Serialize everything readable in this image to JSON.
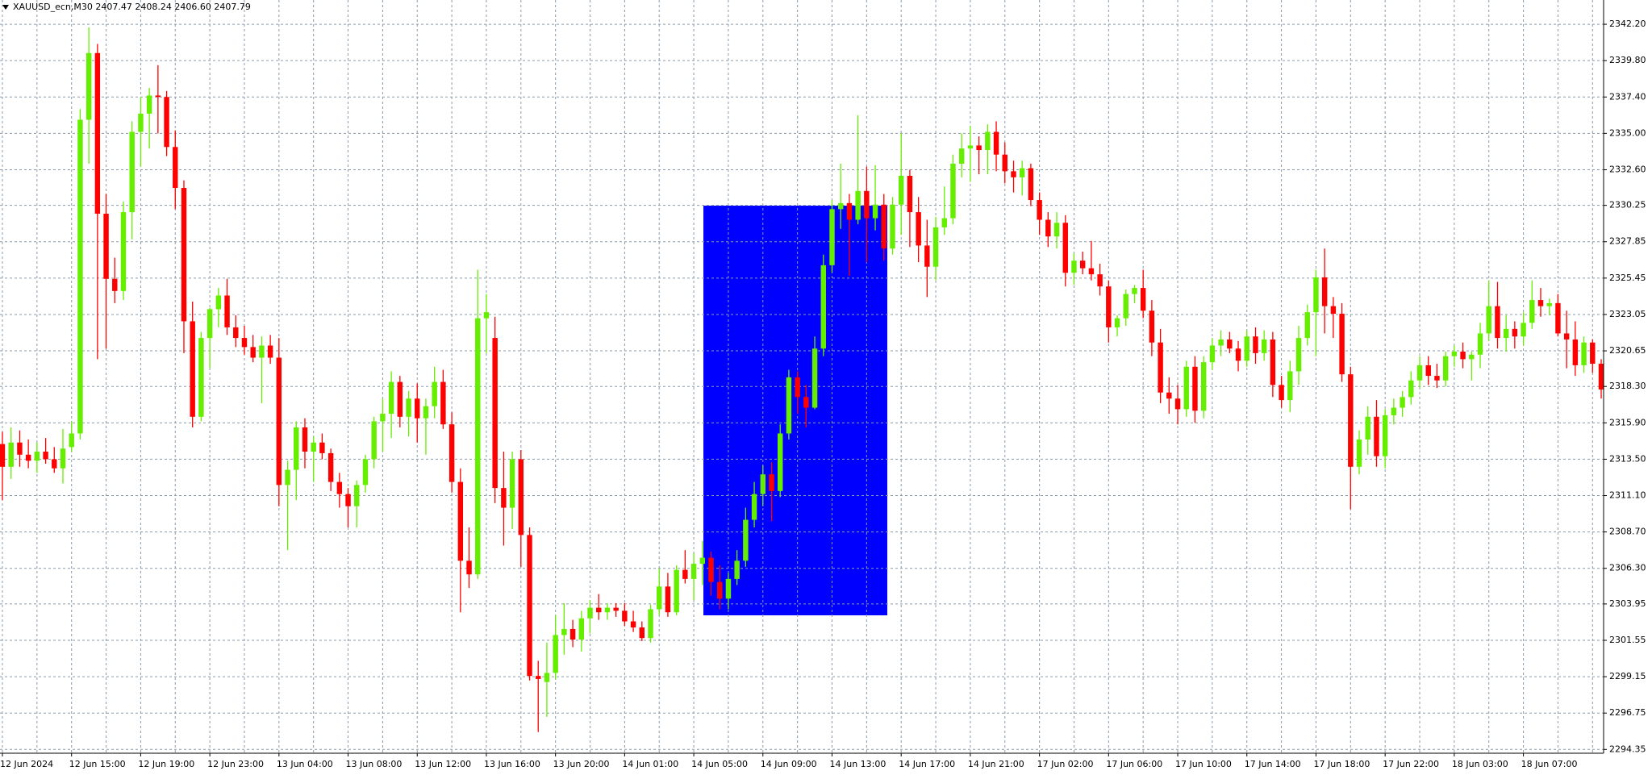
{
  "chart_data": {
    "type": "candlestick",
    "title": "XAUUSD_ecn,M30  2407.47 2408.24 2406.60 2407.79",
    "up_color": "#66ee00",
    "down_color": "#ff0000",
    "grid": true,
    "grid_color": "#8a9aaa",
    "ylim": [
      2294.1,
      2343.8
    ],
    "yticks": [
      {
        "value": 2342.2,
        "label": "2342.20"
      },
      {
        "value": 2339.8,
        "label": "2339.80"
      },
      {
        "value": 2337.4,
        "label": "2337.40"
      },
      {
        "value": 2335.0,
        "label": "2335.00"
      },
      {
        "value": 2332.6,
        "label": "2332.60"
      },
      {
        "value": 2330.25,
        "label": "2330.25"
      },
      {
        "value": 2327.85,
        "label": "2327.85"
      },
      {
        "value": 2325.45,
        "label": "2325.45"
      },
      {
        "value": 2323.05,
        "label": "2323.05"
      },
      {
        "value": 2320.65,
        "label": "2320.65"
      },
      {
        "value": 2318.3,
        "label": "2318.30"
      },
      {
        "value": 2315.9,
        "label": "2315.90"
      },
      {
        "value": 2313.5,
        "label": "2313.50"
      },
      {
        "value": 2311.1,
        "label": "2311.10"
      },
      {
        "value": 2308.7,
        "label": "2308.70"
      },
      {
        "value": 2306.3,
        "label": "2306.30"
      },
      {
        "value": 2303.95,
        "label": "2303.95"
      },
      {
        "value": 2301.55,
        "label": "2301.55"
      },
      {
        "value": 2299.15,
        "label": "2299.15"
      },
      {
        "value": 2296.75,
        "label": "2296.75"
      },
      {
        "value": 2294.35,
        "label": "2294.35"
      }
    ],
    "categories": [
      "12 Jun 2024",
      null,
      null,
      null,
      null,
      null,
      null,
      null,
      "12 Jun 15:00",
      null,
      null,
      null,
      null,
      null,
      null,
      null,
      "12 Jun 19:00",
      null,
      null,
      null,
      null,
      null,
      null,
      null,
      "12 Jun 23:00",
      null,
      null,
      null,
      null,
      null,
      null,
      null,
      "13 Jun 04:00",
      null,
      null,
      null,
      null,
      null,
      null,
      null,
      "13 Jun 08:00",
      null,
      null,
      null,
      null,
      null,
      null,
      null,
      "13 Jun 12:00",
      null,
      null,
      null,
      null,
      null,
      null,
      null,
      "13 Jun 16:00",
      null,
      null,
      null,
      null,
      null,
      null,
      null,
      "13 Jun 20:00",
      null,
      null,
      null,
      null,
      null,
      null,
      null,
      "14 Jun 01:00",
      null,
      null,
      null,
      null,
      null,
      null,
      null,
      "14 Jun 05:00",
      null,
      null,
      null,
      null,
      null,
      null,
      null,
      "14 Jun 09:00",
      null,
      null,
      null,
      null,
      null,
      null,
      null,
      "14 Jun 13:00",
      null,
      null,
      null,
      null,
      null,
      null,
      null,
      "14 Jun 17:00",
      null,
      null,
      null,
      null,
      null,
      null,
      null,
      "14 Jun 21:00",
      null,
      null,
      null,
      null,
      null,
      null,
      null,
      "17 Jun 02:00",
      null,
      null,
      null,
      null,
      null,
      null,
      null,
      "17 Jun 06:00",
      null,
      null,
      null,
      null,
      null,
      null,
      null,
      "17 Jun 10:00",
      null,
      null,
      null,
      null,
      null,
      null,
      null,
      "17 Jun 14:00",
      null,
      null,
      null,
      null,
      null,
      null,
      null,
      "17 Jun 18:00",
      null,
      null,
      null,
      null,
      null,
      null,
      null,
      "17 Jun 22:00",
      null,
      null,
      null,
      null,
      null,
      null,
      null,
      "18 Jun 03:00",
      null,
      null,
      null,
      null,
      null,
      null,
      null,
      "18 Jun 07:00",
      null,
      null,
      null,
      null,
      null,
      null,
      null,
      null,
      null
    ],
    "ohlc": [
      [
        2314.5,
        2315.3,
        2310.8,
        2313.0
      ],
      [
        2313.0,
        2315.6,
        2312.2,
        2314.6
      ],
      [
        2314.6,
        2315.4,
        2313.0,
        2313.8
      ],
      [
        2313.8,
        2314.8,
        2312.9,
        2313.4
      ],
      [
        2313.4,
        2314.6,
        2312.6,
        2314.0
      ],
      [
        2314.0,
        2314.9,
        2313.2,
        2313.5
      ],
      [
        2313.5,
        2314.3,
        2312.6,
        2312.9
      ],
      [
        2312.9,
        2315.5,
        2311.9,
        2314.2
      ],
      [
        2314.3,
        2316.0,
        2314.0,
        2315.2
      ],
      [
        2315.2,
        2336.6,
        2314.8,
        2335.9
      ],
      [
        2335.9,
        2342.0,
        2333.0,
        2340.3
      ],
      [
        2340.3,
        2340.9,
        2320.1,
        2329.7
      ],
      [
        2329.7,
        2331.0,
        2320.8,
        2325.4
      ],
      [
        2325.4,
        2326.8,
        2323.8,
        2324.6
      ],
      [
        2324.6,
        2330.5,
        2324.0,
        2329.8
      ],
      [
        2329.8,
        2335.8,
        2328.0,
        2335.1
      ],
      [
        2335.1,
        2337.4,
        2332.8,
        2336.3
      ],
      [
        2336.3,
        2338.0,
        2334.0,
        2337.5
      ],
      [
        2337.5,
        2339.5,
        2335.0,
        2337.4
      ],
      [
        2337.4,
        2337.8,
        2333.5,
        2334.1
      ],
      [
        2334.1,
        2335.2,
        2330.0,
        2331.4
      ],
      [
        2331.4,
        2331.9,
        2320.5,
        2322.6
      ],
      [
        2322.6,
        2323.9,
        2315.6,
        2316.3
      ],
      [
        2316.3,
        2321.9,
        2316.0,
        2321.5
      ],
      [
        2321.5,
        2323.5,
        2319.5,
        2323.4
      ],
      [
        2323.4,
        2324.8,
        2322.2,
        2324.3
      ],
      [
        2324.3,
        2325.4,
        2321.7,
        2322.2
      ],
      [
        2322.2,
        2323.0,
        2320.9,
        2321.5
      ],
      [
        2321.5,
        2322.3,
        2320.4,
        2320.9
      ],
      [
        2320.9,
        2321.7,
        2319.9,
        2320.2
      ],
      [
        2320.2,
        2321.6,
        2317.2,
        2321.0
      ],
      [
        2321.0,
        2321.7,
        2319.8,
        2320.2
      ],
      [
        2320.2,
        2321.5,
        2310.4,
        2311.8
      ],
      [
        2311.8,
        2313.4,
        2307.5,
        2312.8
      ],
      [
        2312.8,
        2316.0,
        2310.8,
        2315.6
      ],
      [
        2315.6,
        2316.2,
        2312.9,
        2314.0
      ],
      [
        2314.0,
        2315.0,
        2312.0,
        2314.6
      ],
      [
        2314.6,
        2315.2,
        2313.5,
        2313.9
      ],
      [
        2313.9,
        2314.2,
        2311.4,
        2312.0
      ],
      [
        2312.0,
        2312.6,
        2310.3,
        2311.2
      ],
      [
        2311.2,
        2311.6,
        2309.0,
        2310.4
      ],
      [
        2310.4,
        2312.1,
        2309.0,
        2311.8
      ],
      [
        2311.8,
        2313.8,
        2311.3,
        2313.5
      ],
      [
        2313.5,
        2316.3,
        2312.9,
        2316.0
      ],
      [
        2316.0,
        2317.5,
        2314.0,
        2316.5
      ],
      [
        2316.5,
        2319.3,
        2314.9,
        2318.6
      ],
      [
        2318.6,
        2319.0,
        2315.6,
        2316.3
      ],
      [
        2316.3,
        2318.0,
        2315.0,
        2317.5
      ],
      [
        2317.5,
        2318.5,
        2314.6,
        2316.2
      ],
      [
        2316.2,
        2317.5,
        2313.8,
        2317.0
      ],
      [
        2317.0,
        2319.6,
        2316.2,
        2318.6
      ],
      [
        2318.6,
        2319.4,
        2315.5,
        2315.8
      ],
      [
        2315.8,
        2316.6,
        2311.3,
        2312.0
      ],
      [
        2312.0,
        2312.9,
        2303.4,
        2306.8
      ],
      [
        2306.8,
        2309.0,
        2305.0,
        2305.9
      ],
      [
        2305.9,
        2326.0,
        2305.6,
        2322.8
      ],
      [
        2322.8,
        2324.4,
        2320.5,
        2323.2
      ],
      [
        2321.5,
        2322.9,
        2310.6,
        2311.6
      ],
      [
        2311.6,
        2314.0,
        2307.8,
        2310.3
      ],
      [
        2310.3,
        2314.0,
        2308.9,
        2313.5
      ],
      [
        2313.5,
        2314.1,
        2306.4,
        2308.5
      ],
      [
        2308.5,
        2309.0,
        2298.9,
        2299.2
      ],
      [
        2299.2,
        2300.2,
        2295.5,
        2299.0
      ],
      [
        2298.8,
        2301.4,
        2296.5,
        2299.4
      ],
      [
        2299.4,
        2303.2,
        2299.0,
        2301.9
      ],
      [
        2301.9,
        2304.0,
        2300.6,
        2302.3
      ],
      [
        2302.3,
        2302.9,
        2301.1,
        2301.6
      ],
      [
        2301.6,
        2303.5,
        2300.8,
        2303.0
      ],
      [
        2303.0,
        2304.2,
        2302.0,
        2303.7
      ],
      [
        2303.7,
        2304.6,
        2302.9,
        2303.4
      ],
      [
        2303.4,
        2304.0,
        2302.9,
        2303.7
      ],
      [
        2303.7,
        2304.0,
        2303.1,
        2303.5
      ],
      [
        2303.5,
        2304.0,
        2302.5,
        2302.8
      ],
      [
        2302.8,
        2303.5,
        2302.1,
        2302.4
      ],
      [
        2302.4,
        2302.8,
        2301.5,
        2301.7
      ],
      [
        2301.7,
        2303.9,
        2301.4,
        2303.6
      ],
      [
        2303.6,
        2306.3,
        2303.2,
        2305.1
      ],
      [
        2305.1,
        2306.0,
        2303.1,
        2303.4
      ],
      [
        2303.4,
        2306.5,
        2303.2,
        2306.2
      ],
      [
        2306.2,
        2307.5,
        2305.3,
        2305.6
      ],
      [
        2305.6,
        2307.3,
        2304.2,
        2306.6
      ],
      [
        2306.6,
        2308.1,
        2305.2,
        2307.0
      ],
      [
        2307.0,
        2307.4,
        2304.5,
        2305.4
      ],
      [
        2305.4,
        2306.5,
        2303.6,
        2304.3
      ],
      [
        2304.3,
        2306.0,
        2303.6,
        2305.6
      ],
      [
        2305.6,
        2307.5,
        2305.2,
        2306.8
      ],
      [
        2306.8,
        2310.3,
        2306.4,
        2309.5
      ],
      [
        2309.5,
        2312.0,
        2309.0,
        2311.2
      ],
      [
        2311.2,
        2313.1,
        2310.4,
        2312.5
      ],
      [
        2312.5,
        2313.3,
        2309.4,
        2311.4
      ],
      [
        2311.4,
        2315.8,
        2311.0,
        2315.2
      ],
      [
        2315.2,
        2319.4,
        2314.8,
        2318.9
      ],
      [
        2318.9,
        2319.3,
        2316.5,
        2317.6
      ],
      [
        2317.6,
        2318.4,
        2315.6,
        2316.9
      ],
      [
        2316.9,
        2321.6,
        2316.8,
        2320.8
      ],
      [
        2320.8,
        2327.0,
        2320.3,
        2326.3
      ],
      [
        2326.3,
        2330.6,
        2325.8,
        2330.0
      ],
      [
        2330.0,
        2333.0,
        2328.7,
        2330.4
      ],
      [
        2330.4,
        2331.0,
        2325.6,
        2329.3
      ],
      [
        2329.3,
        2336.2,
        2329.0,
        2331.2
      ],
      [
        2331.2,
        2332.8,
        2326.5,
        2329.4
      ],
      [
        2329.4,
        2332.9,
        2328.6,
        2330.3
      ],
      [
        2330.3,
        2331.0,
        2326.6,
        2327.4
      ],
      [
        2327.4,
        2330.8,
        2327.0,
        2330.3
      ],
      [
        2330.3,
        2335.0,
        2328.3,
        2332.2
      ],
      [
        2332.2,
        2332.6,
        2327.5,
        2329.8
      ],
      [
        2329.8,
        2330.8,
        2326.5,
        2327.6
      ],
      [
        2327.6,
        2329.3,
        2324.2,
        2326.2
      ],
      [
        2326.2,
        2329.5,
        2325.3,
        2328.8
      ],
      [
        2328.8,
        2331.5,
        2328.3,
        2329.4
      ],
      [
        2329.4,
        2333.6,
        2329.0,
        2333.0
      ],
      [
        2333.0,
        2335.0,
        2332.1,
        2334.0
      ],
      [
        2334.0,
        2335.5,
        2331.8,
        2334.2
      ],
      [
        2334.2,
        2334.8,
        2332.3,
        2333.9
      ],
      [
        2333.9,
        2335.6,
        2332.3,
        2335.1
      ],
      [
        2335.1,
        2335.8,
        2332.5,
        2333.6
      ],
      [
        2333.6,
        2334.4,
        2331.7,
        2332.5
      ],
      [
        2332.5,
        2333.2,
        2331.1,
        2332.1
      ],
      [
        2332.1,
        2333.2,
        2330.9,
        2332.7
      ],
      [
        2332.7,
        2333.0,
        2330.2,
        2330.6
      ],
      [
        2330.6,
        2331.1,
        2328.3,
        2329.3
      ],
      [
        2329.3,
        2329.8,
        2327.5,
        2328.2
      ],
      [
        2328.2,
        2329.8,
        2327.4,
        2329.1
      ],
      [
        2329.1,
        2329.6,
        2324.9,
        2325.8
      ],
      [
        2325.8,
        2327.1,
        2325.0,
        2326.6
      ],
      [
        2326.6,
        2327.2,
        2325.7,
        2326.1
      ],
      [
        2326.1,
        2327.9,
        2325.3,
        2325.7
      ],
      [
        2325.7,
        2326.4,
        2324.3,
        2324.9
      ],
      [
        2324.9,
        2325.3,
        2321.2,
        2322.2
      ],
      [
        2322.2,
        2323.0,
        2321.6,
        2322.8
      ],
      [
        2322.8,
        2324.7,
        2322.3,
        2324.4
      ],
      [
        2324.4,
        2325.0,
        2323.8,
        2324.8
      ],
      [
        2324.8,
        2326.0,
        2322.8,
        2323.3
      ],
      [
        2323.3,
        2324.0,
        2320.3,
        2321.2
      ],
      [
        2321.2,
        2322.1,
        2317.2,
        2317.9
      ],
      [
        2317.9,
        2318.9,
        2316.5,
        2317.5
      ],
      [
        2317.5,
        2318.4,
        2315.8,
        2316.8
      ],
      [
        2316.8,
        2320.0,
        2316.3,
        2319.6
      ],
      [
        2319.6,
        2320.3,
        2315.9,
        2316.7
      ],
      [
        2316.7,
        2320.3,
        2316.2,
        2319.9
      ],
      [
        2319.9,
        2321.5,
        2319.4,
        2321.0
      ],
      [
        2321.0,
        2322.0,
        2320.3,
        2321.4
      ],
      [
        2321.4,
        2321.9,
        2320.5,
        2320.8
      ],
      [
        2320.8,
        2321.3,
        2319.3,
        2320.0
      ],
      [
        2320.0,
        2322.0,
        2319.6,
        2321.6
      ],
      [
        2321.6,
        2322.2,
        2319.8,
        2320.5
      ],
      [
        2320.5,
        2322.0,
        2320.0,
        2321.4
      ],
      [
        2321.4,
        2321.9,
        2317.6,
        2318.4
      ],
      [
        2318.4,
        2319.0,
        2316.9,
        2317.4
      ],
      [
        2317.4,
        2320.0,
        2316.6,
        2319.3
      ],
      [
        2319.3,
        2322.3,
        2318.4,
        2321.5
      ],
      [
        2321.5,
        2323.7,
        2321.0,
        2323.2
      ],
      [
        2323.2,
        2326.0,
        2320.3,
        2325.5
      ],
      [
        2325.5,
        2327.4,
        2321.8,
        2323.6
      ],
      [
        2323.6,
        2324.2,
        2321.5,
        2323.1
      ],
      [
        2323.1,
        2323.8,
        2318.6,
        2319.1
      ],
      [
        2319.1,
        2319.6,
        2310.2,
        2313.0
      ],
      [
        2313.0,
        2315.4,
        2312.5,
        2314.8
      ],
      [
        2314.8,
        2317.0,
        2313.8,
        2316.3
      ],
      [
        2316.3,
        2317.4,
        2313.0,
        2313.7
      ],
      [
        2313.7,
        2316.8,
        2312.9,
        2316.4
      ],
      [
        2316.4,
        2317.5,
        2315.8,
        2316.9
      ],
      [
        2316.9,
        2318.0,
        2316.3,
        2317.6
      ],
      [
        2317.6,
        2319.3,
        2317.1,
        2318.7
      ],
      [
        2318.7,
        2320.3,
        2318.2,
        2319.7
      ],
      [
        2319.7,
        2320.3,
        2318.4,
        2319.0
      ],
      [
        2319.0,
        2319.8,
        2318.2,
        2318.7
      ],
      [
        2318.7,
        2320.6,
        2318.3,
        2320.3
      ],
      [
        2320.3,
        2321.0,
        2319.6,
        2320.6
      ],
      [
        2320.6,
        2321.2,
        2319.5,
        2320.1
      ],
      [
        2320.1,
        2320.6,
        2318.7,
        2320.4
      ],
      [
        2320.4,
        2322.5,
        2319.5,
        2321.8
      ],
      [
        2321.8,
        2325.3,
        2321.3,
        2323.6
      ],
      [
        2323.6,
        2325.2,
        2320.8,
        2321.5
      ],
      [
        2321.5,
        2323.0,
        2320.6,
        2322.1
      ],
      [
        2322.1,
        2322.6,
        2320.8,
        2321.6
      ],
      [
        2321.6,
        2323.2,
        2321.0,
        2322.5
      ],
      [
        2322.5,
        2325.3,
        2322.1,
        2324.0
      ],
      [
        2324.0,
        2324.8,
        2322.9,
        2323.6
      ],
      [
        2323.6,
        2324.1,
        2323.0,
        2323.8
      ],
      [
        2323.8,
        2324.4,
        2321.6,
        2321.8
      ],
      [
        2321.8,
        2323.3,
        2319.5,
        2321.4
      ],
      [
        2321.4,
        2322.6,
        2319.0,
        2319.7
      ],
      [
        2319.7,
        2321.6,
        2319.2,
        2321.2
      ],
      [
        2321.2,
        2321.4,
        2319.2,
        2319.8
      ],
      [
        2319.8,
        2320.1,
        2317.5,
        2318.1
      ]
    ]
  }
}
